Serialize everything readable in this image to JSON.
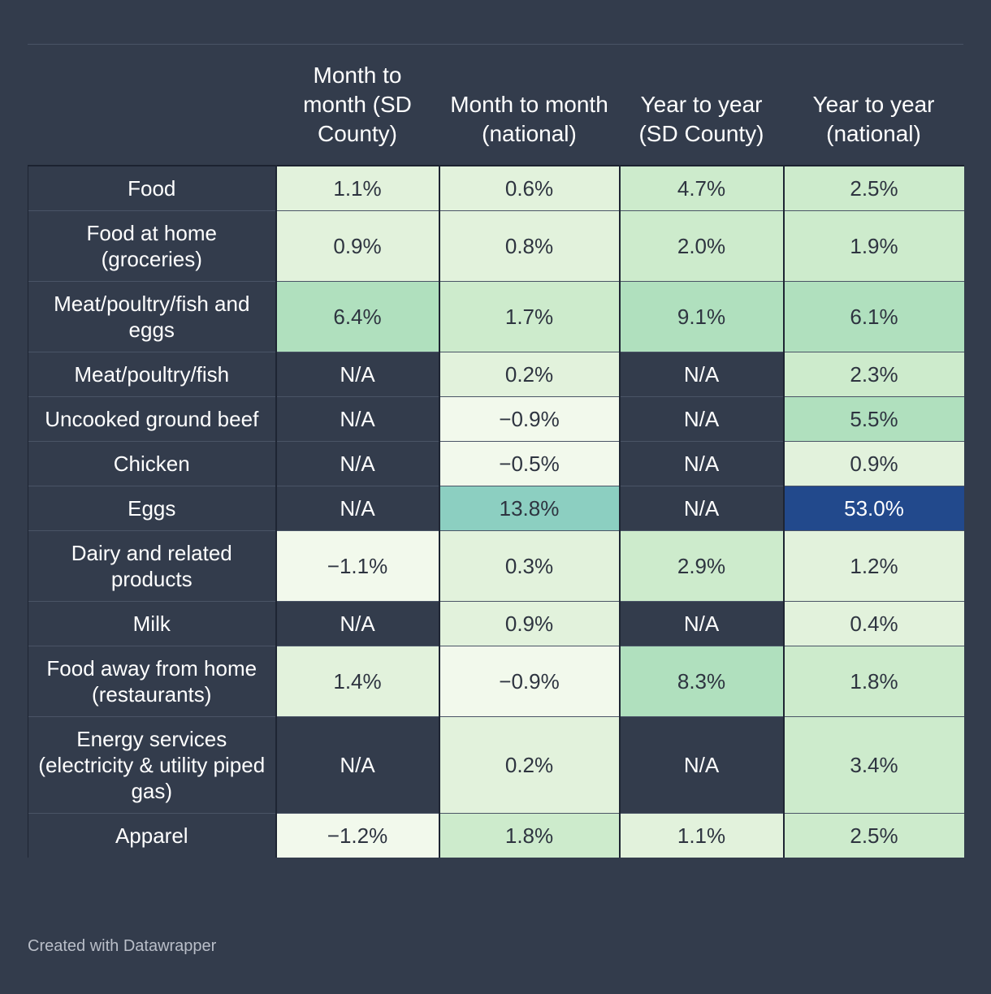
{
  "chart_data": {
    "type": "table",
    "columns": [
      "",
      "Month to month (SD County)",
      "Month to month (national)",
      "Year to year (SD County)",
      "Year to year (national)"
    ],
    "rows": [
      {
        "label": "Food",
        "cells": [
          "1.1%",
          "0.6%",
          "4.7%",
          "2.5%"
        ],
        "values": [
          1.1,
          0.6,
          4.7,
          2.5
        ]
      },
      {
        "label": "Food at home (groceries)",
        "cells": [
          "0.9%",
          "0.8%",
          "2.0%",
          "1.9%"
        ],
        "values": [
          0.9,
          0.8,
          2.0,
          1.9
        ]
      },
      {
        "label": "Meat/poultry/fish and eggs",
        "cells": [
          "6.4%",
          "1.7%",
          "9.1%",
          "6.1%"
        ],
        "values": [
          6.4,
          1.7,
          9.1,
          6.1
        ]
      },
      {
        "label": "Meat/poultry/fish",
        "cells": [
          "N/A",
          "0.2%",
          "N/A",
          "2.3%"
        ],
        "values": [
          null,
          0.2,
          null,
          2.3
        ]
      },
      {
        "label": "Uncooked ground beef",
        "cells": [
          "N/A",
          "−0.9%",
          "N/A",
          "5.5%"
        ],
        "values": [
          null,
          -0.9,
          null,
          5.5
        ]
      },
      {
        "label": "Chicken",
        "cells": [
          "N/A",
          "−0.5%",
          "N/A",
          "0.9%"
        ],
        "values": [
          null,
          -0.5,
          null,
          0.9
        ]
      },
      {
        "label": "Eggs",
        "cells": [
          "N/A",
          "13.8%",
          "N/A",
          "53.0%"
        ],
        "values": [
          null,
          13.8,
          null,
          53.0
        ]
      },
      {
        "label": "Dairy and related products",
        "cells": [
          "−1.1%",
          "0.3%",
          "2.9%",
          "1.2%"
        ],
        "values": [
          -1.1,
          0.3,
          2.9,
          1.2
        ]
      },
      {
        "label": "Milk",
        "cells": [
          "N/A",
          "0.9%",
          "N/A",
          "0.4%"
        ],
        "values": [
          null,
          0.9,
          null,
          0.4
        ]
      },
      {
        "label": "Food away from home (restaurants)",
        "cells": [
          "1.4%",
          "−0.9%",
          "8.3%",
          "1.8%"
        ],
        "values": [
          1.4,
          -0.9,
          8.3,
          1.8
        ]
      },
      {
        "label": "Energy services (electricity & utility piped gas)",
        "cells": [
          "N/A",
          "0.2%",
          "N/A",
          "3.4%"
        ],
        "values": [
          null,
          0.2,
          null,
          3.4
        ]
      },
      {
        "label": "Apparel",
        "cells": [
          "−1.2%",
          "1.8%",
          "1.1%",
          "2.5%"
        ],
        "values": [
          -1.2,
          1.8,
          1.1,
          2.5
        ]
      }
    ],
    "color_scale": [
      "#f2f9ec",
      "#e2f2dc",
      "#cdebcc",
      "#b0e0be",
      "#8ccfc1",
      "#22498c"
    ],
    "na_color": "#333c4c"
  },
  "footer": {
    "credit": "Created with Datawrapper"
  }
}
